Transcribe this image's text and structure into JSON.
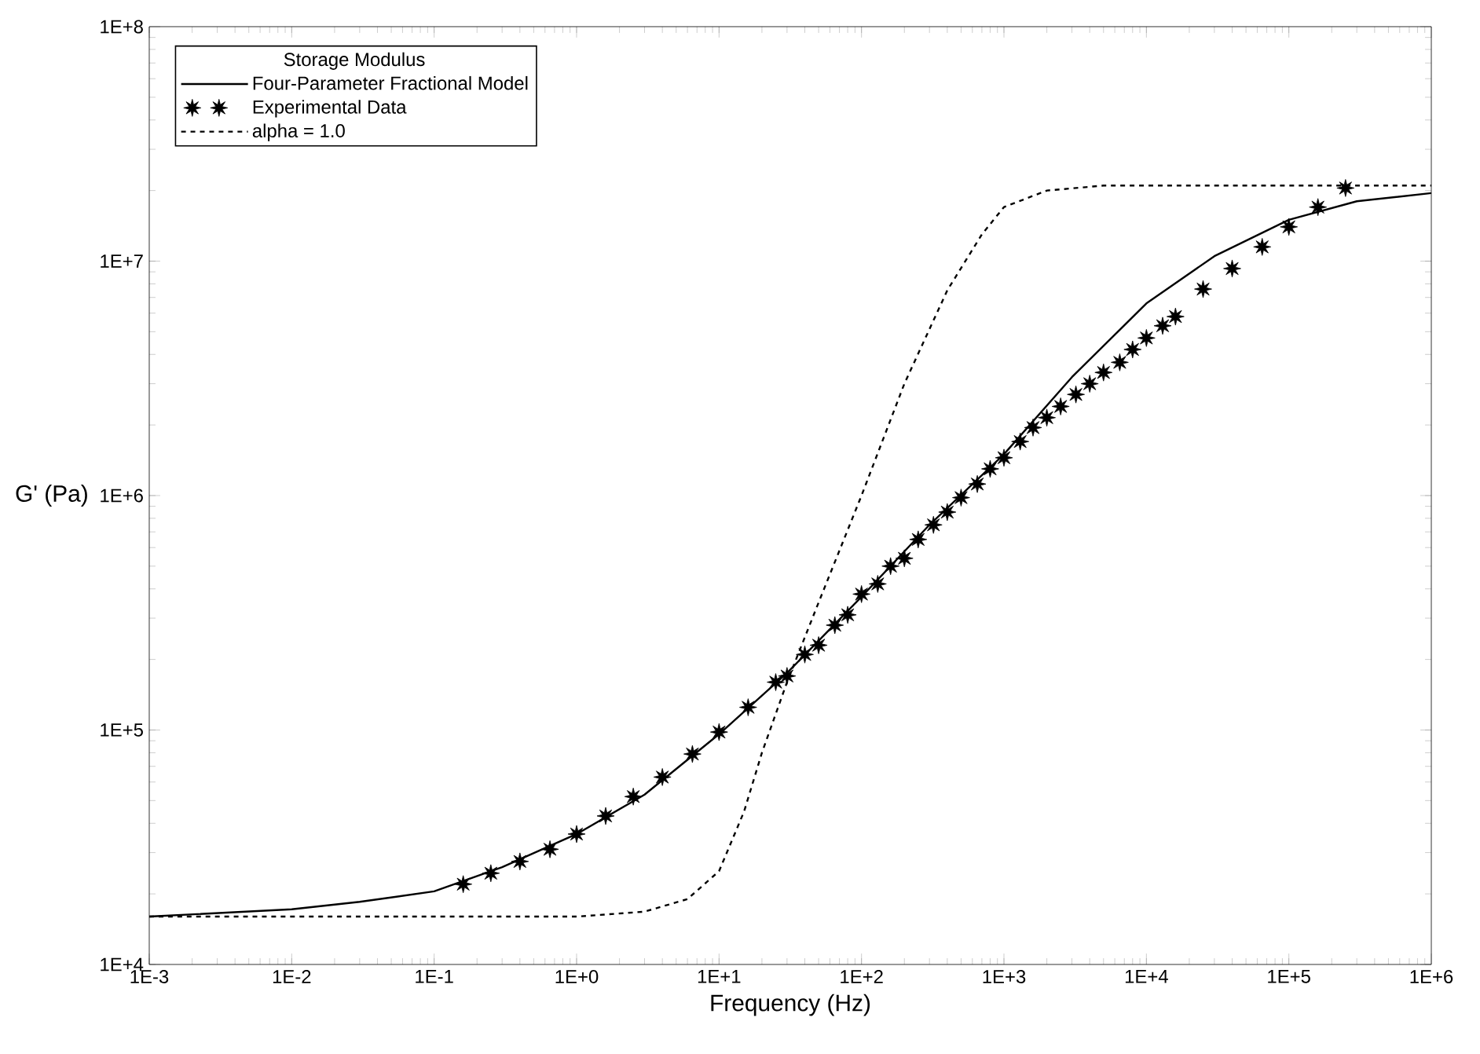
{
  "chart_data": {
    "type": "line",
    "xlabel": "Frequency (Hz)",
    "ylabel": "G' (Pa)",
    "legend_title": "Storage Modulus",
    "legend": "top left",
    "log": "xy",
    "grid": false,
    "xlim": [
      0.001,
      1000000
    ],
    "ylim": [
      10000,
      100000000
    ],
    "xticks": [
      {
        "value": 0.001,
        "label": "1E-3"
      },
      {
        "value": 0.01,
        "label": "1E-2"
      },
      {
        "value": 0.1,
        "label": "1E-1"
      },
      {
        "value": 1,
        "label": "1E+0"
      },
      {
        "value": 10,
        "label": "1E+1"
      },
      {
        "value": 100,
        "label": "1E+2"
      },
      {
        "value": 1000,
        "label": "1E+3"
      },
      {
        "value": 10000,
        "label": "1E+4"
      },
      {
        "value": 100000,
        "label": "1E+5"
      },
      {
        "value": 1000000,
        "label": "1E+6"
      }
    ],
    "yticks": [
      {
        "value": 10000,
        "label": "1E+4"
      },
      {
        "value": 100000,
        "label": "1E+5"
      },
      {
        "value": 1000000,
        "label": "1E+6"
      },
      {
        "value": 10000000,
        "label": "1E+7"
      },
      {
        "value": 100000000,
        "label": "1E+8"
      }
    ],
    "series": [
      {
        "name": "Four-Parameter Fractional Model",
        "color": "#000000",
        "marker": "none",
        "line_style": "solid",
        "x": [
          0.001,
          0.01,
          0.03,
          0.1,
          0.3,
          1,
          3,
          10,
          30,
          100,
          300,
          1000,
          3000,
          10000,
          30000,
          100000,
          300000,
          1000000
        ],
        "values": [
          16000,
          17200,
          18500,
          20500,
          26000,
          36000,
          53000,
          96000,
          175000,
          370000,
          750000,
          1500000,
          3200000,
          6600000,
          10500000,
          15000000,
          18000000,
          19500000
        ]
      },
      {
        "name": "Experimental Data",
        "type": "scatter",
        "color": "#000000",
        "marker": "star",
        "x": [
          0.16,
          0.25,
          0.4,
          0.65,
          1.0,
          1.6,
          2.5,
          4,
          6.5,
          10,
          16,
          25,
          30,
          40,
          50,
          65,
          80,
          100,
          130,
          160,
          200,
          250,
          320,
          400,
          500,
          650,
          800,
          1000,
          1300,
          1600,
          2000,
          2500,
          3200,
          4000,
          5000,
          6500,
          8000,
          10000,
          13000,
          16000,
          25000,
          40000,
          65000,
          100000,
          160000,
          250000
        ],
        "values": [
          22000,
          24500,
          27500,
          31000,
          36000,
          43000,
          52000,
          63000,
          79000,
          98000,
          125000,
          160000,
          170000,
          210000,
          230000,
          280000,
          310000,
          380000,
          420000,
          500000,
          540000,
          650000,
          750000,
          850000,
          980000,
          1120000,
          1300000,
          1450000,
          1700000,
          1950000,
          2150000,
          2400000,
          2700000,
          3000000,
          3350000,
          3700000,
          4200000,
          4700000,
          5300000,
          5800000,
          7600000,
          9300000,
          11500000,
          14000000,
          17000000,
          20500000
        ]
      },
      {
        "name": "alpha = 1.0",
        "color": "#000000",
        "marker": "none",
        "line_style": "dashed",
        "x": [
          0.001,
          1,
          3,
          6,
          10,
          15,
          20,
          30,
          50,
          100,
          200,
          400,
          700,
          1000,
          2000,
          5000,
          1000000
        ],
        "values": [
          16000,
          16000,
          16800,
          19000,
          25000,
          45000,
          80000,
          160000,
          350000,
          1000000,
          3000000,
          7500000,
          13000000,
          17000000,
          20000000,
          21000000,
          21000000
        ]
      }
    ]
  }
}
